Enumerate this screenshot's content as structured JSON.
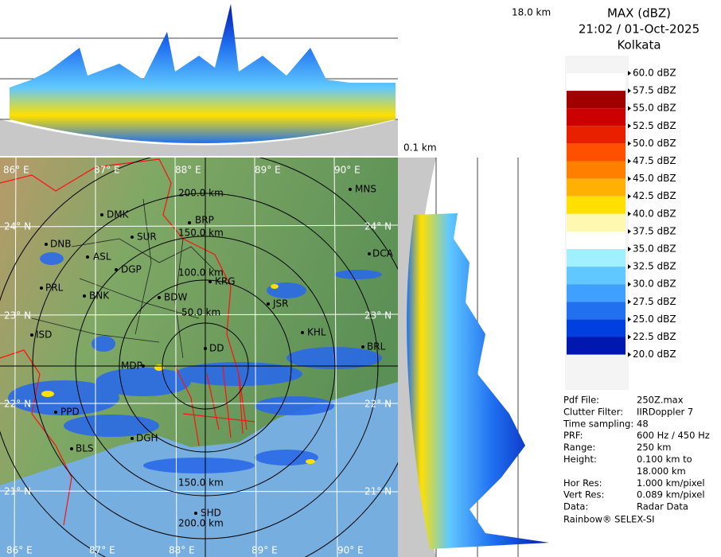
{
  "header": {
    "top_height": "18.0 km",
    "bottom_height": "0.1 km",
    "title": "MAX (dBZ)",
    "datetime": "21:02 / 01-Oct-2025",
    "station": "Kolkata"
  },
  "legend": {
    "labels": [
      "60.0 dBZ",
      "57.5 dBZ",
      "55.0 dBZ",
      "52.5 dBZ",
      "50.0 dBZ",
      "47.5 dBZ",
      "45.0 dBZ",
      "42.5 dBZ",
      "40.0 dBZ",
      "37.5 dBZ",
      "35.0 dBZ",
      "32.5 dBZ",
      "30.0 dBZ",
      "27.5 dBZ",
      "25.0 dBZ",
      "22.5 dBZ",
      "20.0 dBZ"
    ],
    "colors": [
      "#ffffff",
      "#a00000",
      "#cc0000",
      "#e82000",
      "#ff5000",
      "#ff8000",
      "#ffb000",
      "#ffe000",
      "#fff8b0",
      "#ffffff",
      "#a0f0ff",
      "#60c8ff",
      "#40a0ff",
      "#2070f0",
      "#0040e0",
      "#0018b0"
    ]
  },
  "map": {
    "lon_top": [
      "86° E",
      "87° E",
      "88° E",
      "89° E",
      "90° E"
    ],
    "lon_bottom": [
      "86° E",
      "87° E",
      "88° E",
      "89° E",
      "90° E"
    ],
    "lat_left": [
      "24° N",
      "23° N",
      "22° N",
      "21° N"
    ],
    "lat_right": [
      "24° N",
      "23° N",
      "22° N",
      "21° N"
    ],
    "ranges": [
      "200.0 km",
      "150.0 km",
      "100.0 km",
      "50.0 km",
      "150.0 km",
      "200.0 km"
    ],
    "cities": [
      "MNS",
      "DMK",
      "BRP",
      "DNB",
      "SUR",
      "ASL",
      "DGP",
      "DCA",
      "PRL",
      "BNK",
      "KRG",
      "BDW",
      "JSR",
      "KHL",
      "ISD",
      "DD",
      "BRL",
      "MDP",
      "PPD",
      "BLS",
      "DGH",
      "SHD"
    ]
  },
  "info": {
    "rows": [
      {
        "label": "Pdf File:",
        "value": "250Z.max"
      },
      {
        "label": "Clutter Filter:",
        "value": "IIRDoppler 7"
      },
      {
        "label": "Time sampling:",
        "value": "48"
      },
      {
        "label": "PRF:",
        "value": "600 Hz / 450 Hz"
      },
      {
        "label": "Range:",
        "value": "250 km"
      },
      {
        "label": "Height:",
        "value": "0.100 km to"
      },
      {
        "value": "18.000 km"
      },
      {
        "label": "Hor Res:",
        "value": "1.000 km/pixel"
      },
      {
        "label": "Vert Res:",
        "value": "0.089 km/pixel"
      },
      {
        "label": "Data:",
        "value": "Radar Data"
      }
    ],
    "footer": "Rainbow® SELEX-SI"
  }
}
